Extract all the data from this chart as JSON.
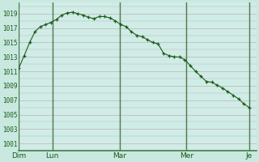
{
  "background_color": "#c8e8e0",
  "plot_bg_color": "#d0ece6",
  "grid_color": "#c0b0b8",
  "line_color": "#1a5c1a",
  "marker_color": "#1a5c1a",
  "tick_color": "#1a5c1a",
  "day_line_color": "#4a7a4a",
  "ylim": [
    1000,
    1020.5
  ],
  "yticks": [
    1001,
    1003,
    1005,
    1007,
    1009,
    1011,
    1013,
    1015,
    1017,
    1019
  ],
  "x_day_labels": [
    "Dim",
    "Lun",
    "Mar",
    "Mer",
    "Je"
  ],
  "x_day_positions": [
    0,
    48,
    144,
    240,
    330
  ],
  "pressure_x": [
    0,
    8,
    16,
    24,
    32,
    40,
    48,
    56,
    64,
    72,
    80,
    88,
    96,
    104,
    112,
    120,
    128,
    136,
    144,
    152,
    160,
    168,
    176,
    184,
    192,
    200,
    208,
    216,
    224,
    232,
    240,
    248,
    256,
    264,
    272,
    280,
    288,
    296,
    304,
    312,
    320,
    328,
    336,
    344
  ],
  "pressure": [
    1011.5,
    1013.2,
    1015.0,
    1016.5,
    1017.2,
    1017.5,
    1017.8,
    1018.2,
    1018.8,
    1019.1,
    1019.2,
    1019.0,
    1018.8,
    1018.5,
    1018.3,
    1018.6,
    1018.6,
    1018.4,
    1018.0,
    1017.5,
    1017.2,
    1016.5,
    1016.0,
    1015.8,
    1015.4,
    1015.0,
    1014.8,
    1013.5,
    1013.2,
    1013.0,
    1013.0,
    1012.6,
    1011.8,
    1011.0,
    1010.3,
    1009.6,
    1009.5,
    1009.1,
    1008.7,
    1008.2,
    1007.7,
    1007.2,
    1006.5,
    1006.0
  ]
}
